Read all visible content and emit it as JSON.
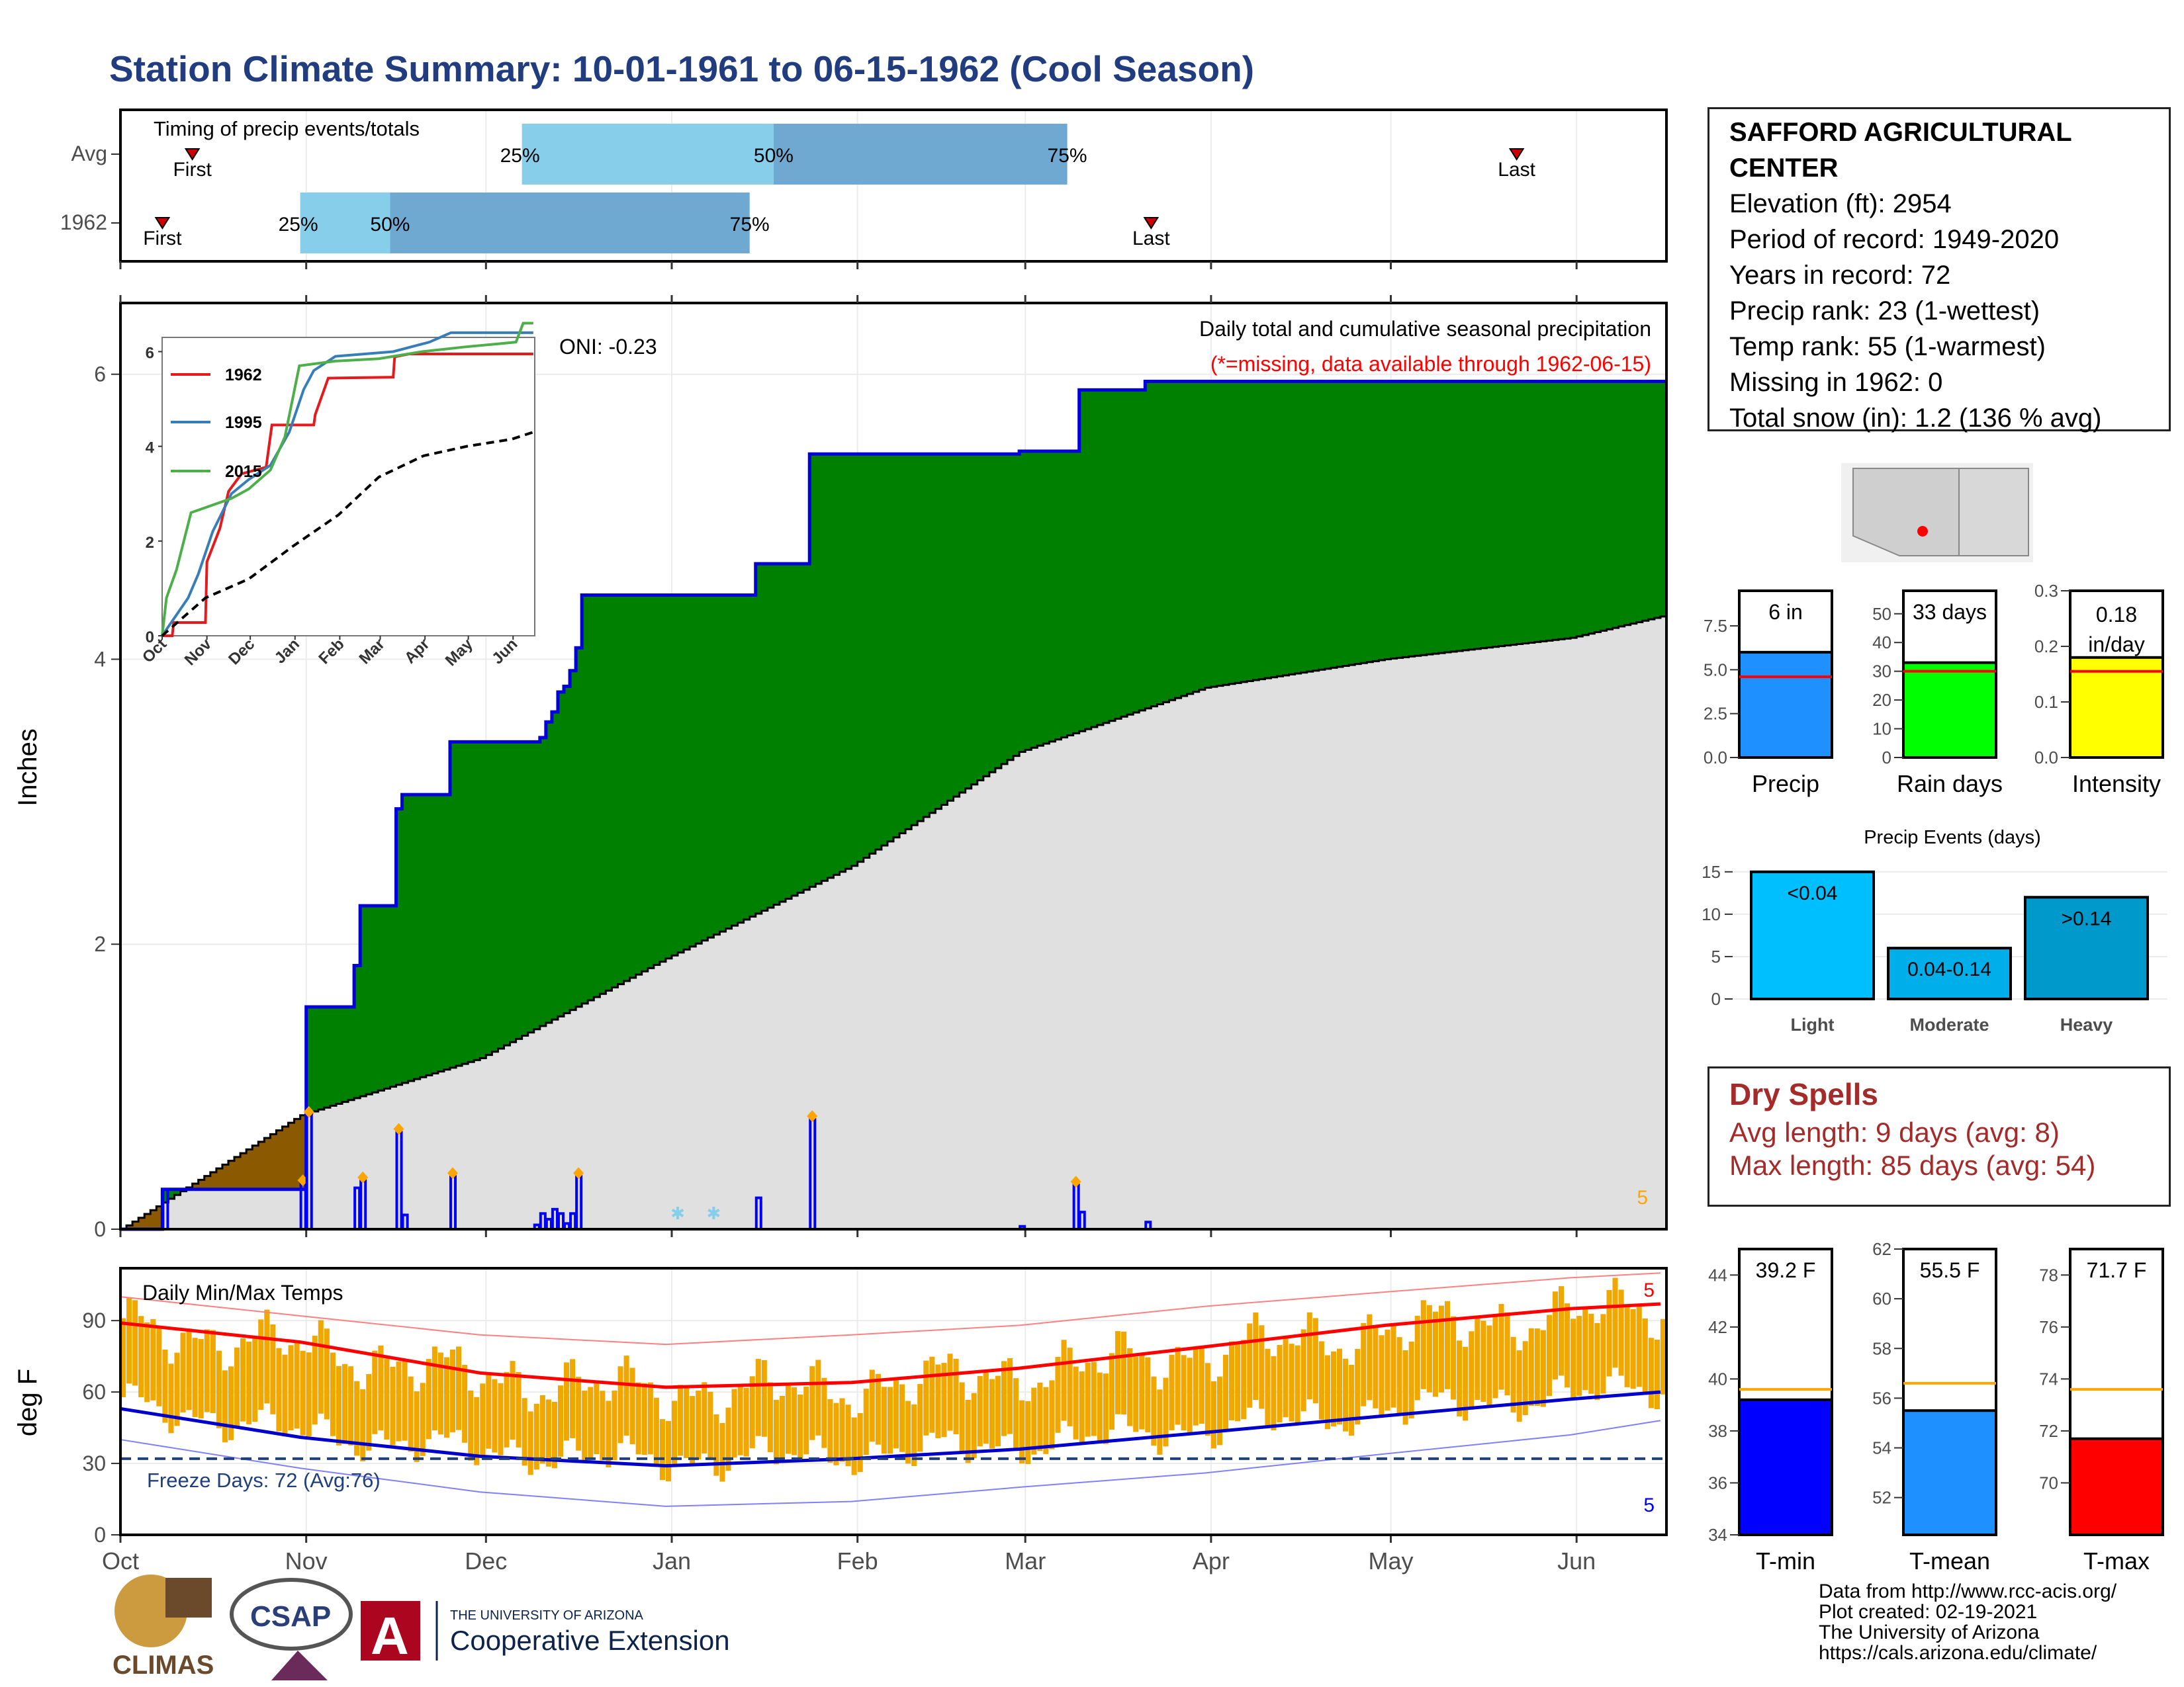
{
  "page": {
    "title": "Station Climate Summary: 10-01-1961 to 06-15-1962 (Cool Season)"
  },
  "station": {
    "name": "SAFFORD AGRICULTURAL CENTER",
    "elevation": "Elevation (ft): 2954",
    "period": "Period of record: 1949-2020",
    "years": "Years in record: 72",
    "precip_rank": "Precip rank: 23 (1-wettest)",
    "temp_rank": "Temp rank: 55 (1-warmest)",
    "missing": "Missing in 1962: 0",
    "snow": "Total snow (in): 1.2 (136 % avg)"
  },
  "dry_spells": {
    "title": "Dry Spells",
    "avg": "Avg length: 9 days (avg: 8)",
    "max": "Max length: 85 days (avg: 54)"
  },
  "credits": [
    "Data from http://www.rcc-acis.org/",
    "Plot created: 02-19-2021",
    "The University of Arizona",
    "https://cals.arizona.edu/climate/"
  ],
  "logos": {
    "climas": "CLIMAS",
    "csap": "CSAP",
    "ua_top": "THE UNIVERSITY OF ARIZONA",
    "ua_bottom": "Cooperative Extension"
  },
  "colors": {
    "title": "#213d80",
    "cum_above": "#008000",
    "cum_below": "#e0e0e0",
    "brown": "#8b5a00",
    "precip_blue": "#0000ff",
    "temp_bar": "#f0a800",
    "dry": "#a52a2a"
  },
  "chart_data": [
    {
      "id": "timing",
      "type": "bar",
      "title": "Timing of precip events/totals",
      "rows": [
        {
          "label": "Avg",
          "first": "Oct 13",
          "q25": "Dec 7",
          "q50": "Jan 18",
          "q75": "Mar 8",
          "last": "May 22"
        },
        {
          "label": "1962",
          "first": "Oct 8",
          "q25": "Oct 31",
          "q50": "Nov 15",
          "q75": "Jan 14",
          "last": "Mar 22"
        }
      ],
      "marker_labels": {
        "first": "First",
        "last": "Last",
        "q25": "25%",
        "q50": "50%",
        "q75": "75%"
      }
    },
    {
      "id": "cumulative",
      "type": "area",
      "title": "Daily total and cumulative seasonal precipitation",
      "subtitle": "(*=missing, data available through 1962-06-15)",
      "ylabel": "Inches",
      "ylim": [
        0,
        6.5
      ],
      "yticks": [
        0,
        2,
        4,
        6
      ],
      "xticks": [
        "Oct",
        "Nov",
        "Dec",
        "Jan",
        "Feb",
        "Mar",
        "Apr",
        "May",
        "Jun"
      ],
      "oni": "ONI: -0.23",
      "corner_label": "5",
      "cumulative_1962": [
        [
          "1961-10-01",
          0
        ],
        [
          "1961-10-08",
          0.28
        ],
        [
          "1961-10-31",
          0.28
        ],
        [
          "1961-11-01",
          1.56
        ],
        [
          "1961-11-08",
          1.56
        ],
        [
          "1961-11-09",
          1.85
        ],
        [
          "1961-11-10",
          2.27
        ],
        [
          "1961-11-15",
          2.27
        ],
        [
          "1961-11-16",
          2.95
        ],
        [
          "1961-11-17",
          3.05
        ],
        [
          "1961-11-24",
          3.05
        ],
        [
          "1961-11-25",
          3.42
        ],
        [
          "1961-12-09",
          3.42
        ],
        [
          "1961-12-10",
          3.45
        ],
        [
          "1961-12-11",
          3.56
        ],
        [
          "1961-12-12",
          3.63
        ],
        [
          "1961-12-13",
          3.77
        ],
        [
          "1961-12-14",
          3.81
        ],
        [
          "1961-12-15",
          3.92
        ],
        [
          "1961-12-16",
          4.08
        ],
        [
          "1961-12-17",
          4.45
        ],
        [
          "1962-01-14",
          4.45
        ],
        [
          "1962-01-15",
          4.67
        ],
        [
          "1962-01-23",
          4.67
        ],
        [
          "1962-01-24",
          5.44
        ],
        [
          "1962-02-27",
          5.44
        ],
        [
          "1962-02-28",
          5.46
        ],
        [
          "1962-03-09",
          5.46
        ],
        [
          "1962-03-10",
          5.89
        ],
        [
          "1962-03-20",
          5.89
        ],
        [
          "1962-03-21",
          5.95
        ],
        [
          "1962-06-15",
          5.95
        ]
      ],
      "normal_cumulative": [
        [
          "1961-10-01",
          0
        ],
        [
          "1961-10-31",
          0.8
        ],
        [
          "1961-11-30",
          1.2
        ],
        [
          "1961-12-31",
          1.9
        ],
        [
          "1962-01-31",
          2.55
        ],
        [
          "1962-02-28",
          3.35
        ],
        [
          "1962-03-31",
          3.8
        ],
        [
          "1962-04-30",
          4.0
        ],
        [
          "1962-05-31",
          4.15
        ],
        [
          "1962-06-15",
          4.3
        ]
      ],
      "daily_precip": [
        [
          "1961-10-08",
          0.28
        ],
        [
          "1961-10-31",
          0.32
        ],
        [
          "1961-11-01",
          0.8
        ],
        [
          "1961-11-09",
          0.29
        ],
        [
          "1961-11-10",
          0.34
        ],
        [
          "1961-11-16",
          0.68
        ],
        [
          "1961-11-17",
          0.1
        ],
        [
          "1961-11-25",
          0.37
        ],
        [
          "1961-12-09",
          0.03
        ],
        [
          "1961-12-10",
          0.11
        ],
        [
          "1961-12-11",
          0.07
        ],
        [
          "1961-12-12",
          0.14
        ],
        [
          "1961-12-13",
          0.11
        ],
        [
          "1961-12-14",
          0.04
        ],
        [
          "1961-12-15",
          0.11
        ],
        [
          "1961-12-16",
          0.37
        ],
        [
          "1962-01-15",
          0.22
        ],
        [
          "1962-01-24",
          0.77
        ],
        [
          "1962-02-28",
          0.02
        ],
        [
          "1962-03-09",
          0.31
        ],
        [
          "1962-03-10",
          0.12
        ],
        [
          "1962-03-21",
          0.05
        ]
      ],
      "inset": {
        "type": "line",
        "xticks": [
          "Oct",
          "Nov",
          "Dec",
          "Jan",
          "Feb",
          "Mar",
          "Apr",
          "May",
          "Jun"
        ],
        "yticks": [
          0,
          2,
          4,
          6
        ],
        "ylim": [
          0,
          6.3
        ],
        "series": [
          {
            "name": "1962",
            "color": "#e41a1c",
            "values": [
              [
                0,
                0
              ],
              [
                7,
                0
              ],
              [
                8,
                0.28
              ],
              [
                30,
                0.28
              ],
              [
                31,
                1.56
              ],
              [
                40,
                2.27
              ],
              [
                46,
                3.05
              ],
              [
                55,
                3.42
              ],
              [
                72,
                3.56
              ],
              [
                76,
                4.45
              ],
              [
                105,
                4.45
              ],
              [
                106,
                4.67
              ],
              [
                115,
                5.44
              ],
              [
                160,
                5.46
              ],
              [
                161,
                5.89
              ],
              [
                171,
                5.95
              ],
              [
                257,
                5.95
              ]
            ]
          },
          {
            "name": "1995",
            "color": "#377eb8",
            "values": [
              [
                0,
                0
              ],
              [
                18,
                0.8
              ],
              [
                25,
                1.3
              ],
              [
                35,
                2.2
              ],
              [
                48,
                3.0
              ],
              [
                60,
                3.3
              ],
              [
                75,
                3.6
              ],
              [
                88,
                4.3
              ],
              [
                98,
                5.2
              ],
              [
                105,
                5.6
              ],
              [
                120,
                5.9
              ],
              [
                160,
                6.0
              ],
              [
                185,
                6.2
              ],
              [
                200,
                6.4
              ],
              [
                257,
                6.4
              ]
            ]
          },
          {
            "name": "2015",
            "color": "#4daf4a",
            "values": [
              [
                0,
                0
              ],
              [
                3,
                0.8
              ],
              [
                10,
                1.4
              ],
              [
                15,
                2.0
              ],
              [
                20,
                2.6
              ],
              [
                48,
                2.9
              ],
              [
                60,
                3.1
              ],
              [
                75,
                3.5
              ],
              [
                85,
                4.2
              ],
              [
                95,
                5.7
              ],
              [
                120,
                5.8
              ],
              [
                150,
                5.85
              ],
              [
                180,
                6.0
              ],
              [
                210,
                6.1
              ],
              [
                245,
                6.2
              ],
              [
                250,
                6.6
              ],
              [
                257,
                6.6
              ]
            ]
          },
          {
            "name": "avg",
            "color": "#000000",
            "values": [
              [
                0,
                0
              ],
              [
                30,
                0.8
              ],
              [
                60,
                1.2
              ],
              [
                91,
                1.9
              ],
              [
                122,
                2.55
              ],
              [
                150,
                3.35
              ],
              [
                181,
                3.8
              ],
              [
                211,
                4.0
              ],
              [
                242,
                4.15
              ],
              [
                257,
                4.3
              ]
            ]
          }
        ]
      }
    },
    {
      "id": "temps",
      "type": "bar",
      "title": "Daily Min/Max Temps",
      "ylabel": "deg F",
      "ylim": [
        0,
        112
      ],
      "yticks": [
        0,
        30,
        60,
        90
      ],
      "xticks": [
        "Oct",
        "Nov",
        "Dec",
        "Jan",
        "Feb",
        "Mar",
        "Apr",
        "May",
        "Jun"
      ],
      "freeze_label": "Freeze Days: 72 (Avg:76)",
      "freeze_line": 32,
      "corner_top": "5",
      "corner_bottom": "5",
      "avg_max": [
        [
          0,
          89
        ],
        [
          30,
          81
        ],
        [
          60,
          68
        ],
        [
          91,
          62
        ],
        [
          122,
          64
        ],
        [
          150,
          70
        ],
        [
          181,
          79
        ],
        [
          211,
          88
        ],
        [
          242,
          95
        ],
        [
          257,
          97
        ]
      ],
      "avg_min": [
        [
          0,
          53
        ],
        [
          30,
          41
        ],
        [
          60,
          33
        ],
        [
          91,
          29
        ],
        [
          122,
          32
        ],
        [
          150,
          36
        ],
        [
          181,
          43
        ],
        [
          211,
          50
        ],
        [
          242,
          57
        ],
        [
          257,
          60
        ]
      ],
      "record_max": [
        [
          0,
          100
        ],
        [
          30,
          92
        ],
        [
          60,
          84
        ],
        [
          91,
          80
        ],
        [
          122,
          84
        ],
        [
          150,
          88
        ],
        [
          181,
          96
        ],
        [
          211,
          102
        ],
        [
          242,
          108
        ],
        [
          257,
          110
        ]
      ],
      "record_min": [
        [
          0,
          40
        ],
        [
          30,
          28
        ],
        [
          60,
          18
        ],
        [
          91,
          12
        ],
        [
          122,
          14
        ],
        [
          150,
          20
        ],
        [
          181,
          26
        ],
        [
          211,
          34
        ],
        [
          242,
          42
        ],
        [
          257,
          48
        ]
      ]
    },
    {
      "id": "precip_total",
      "type": "bar",
      "xlabel": "Precip",
      "value": 6,
      "label": "6 in",
      "avg": 4.6,
      "ylim": [
        0,
        9.5
      ],
      "yticks": [
        "0.0",
        "2.5",
        "5.0",
        "7.5"
      ],
      "color": "#1e90ff"
    },
    {
      "id": "rain_days",
      "type": "bar",
      "xlabel": "Rain days",
      "value": 33,
      "label": "33 days",
      "avg": 30,
      "ylim": [
        0,
        58
      ],
      "yticks": [
        "0",
        "10",
        "20",
        "30",
        "40",
        "50"
      ],
      "color": "#00ff00"
    },
    {
      "id": "intensity",
      "type": "bar",
      "xlabel": "Intensity",
      "value": 0.18,
      "label_top": "0.18",
      "label_bottom": "in/day",
      "avg": 0.155,
      "ylim": [
        0,
        0.3
      ],
      "yticks": [
        "0.0",
        "0.1",
        "0.2",
        "0.3"
      ],
      "color": "#ffff00"
    },
    {
      "id": "events",
      "type": "bar",
      "title": "Precip Events (days)",
      "categories": [
        "Light",
        "Moderate",
        "Heavy"
      ],
      "values": [
        15,
        6,
        12
      ],
      "labels": [
        "<0.04",
        "0.04-0.14",
        ">0.14"
      ],
      "ylim": [
        0,
        16
      ],
      "yticks": [
        "0",
        "5",
        "10",
        "15"
      ],
      "colors": [
        "#00bfff",
        "#00aeea",
        "#0099cc"
      ]
    },
    {
      "id": "tmin",
      "type": "bar",
      "xlabel": "T-min",
      "value": 39.2,
      "label": "39.2 F",
      "avg": 39.6,
      "ylim": [
        34,
        45
      ],
      "yticks": [
        "34",
        "36",
        "38",
        "40",
        "42",
        "44"
      ],
      "color": "#0000ff"
    },
    {
      "id": "tmean",
      "type": "bar",
      "xlabel": "T-mean",
      "value": 55.5,
      "label": "55.5 F",
      "avg": 56.6,
      "ylim": [
        50.5,
        62
      ],
      "yticks": [
        "52",
        "54",
        "56",
        "58",
        "60",
        "62"
      ],
      "color": "#1e90ff"
    },
    {
      "id": "tmax",
      "type": "bar",
      "xlabel": "T-max",
      "value": 71.7,
      "label": "71.7 F",
      "avg": 73.6,
      "ylim": [
        68,
        79
      ],
      "yticks": [
        "70",
        "72",
        "74",
        "76",
        "78"
      ],
      "color": "#ff0000"
    }
  ]
}
